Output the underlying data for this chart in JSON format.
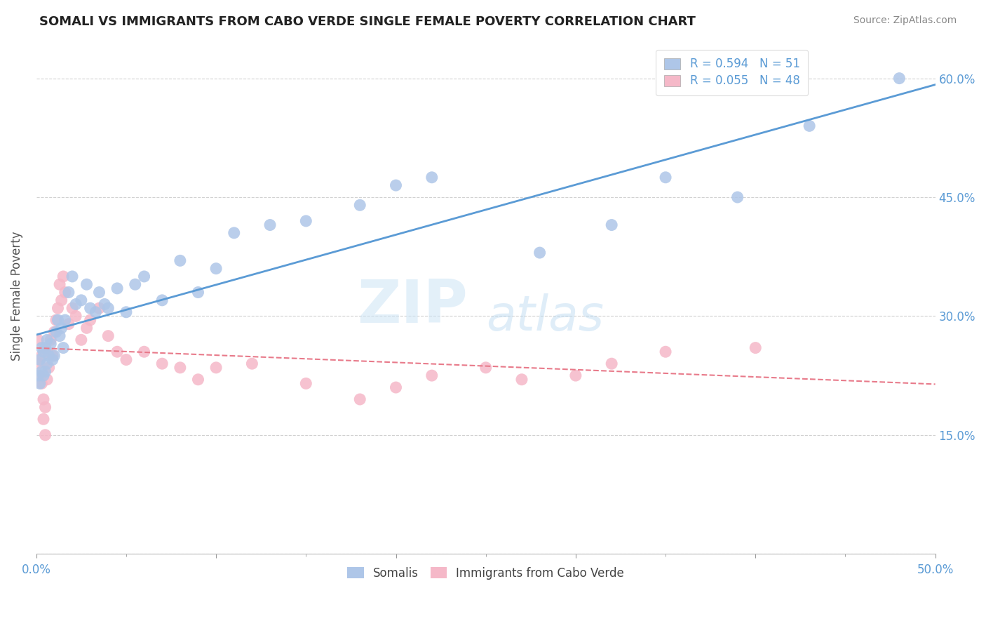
{
  "title": "SOMALI VS IMMIGRANTS FROM CABO VERDE SINGLE FEMALE POVERTY CORRELATION CHART",
  "source": "Source: ZipAtlas.com",
  "ylabel_label": "Single Female Poverty",
  "blue_color": "#aec6e8",
  "pink_color": "#f5b8c8",
  "blue_line_color": "#5b9bd5",
  "pink_line_color": "#e87a8a",
  "somali_x": [
    0.001,
    0.002,
    0.002,
    0.003,
    0.003,
    0.004,
    0.004,
    0.005,
    0.005,
    0.006,
    0.006,
    0.007,
    0.008,
    0.009,
    0.01,
    0.011,
    0.012,
    0.013,
    0.014,
    0.015,
    0.016,
    0.018,
    0.02,
    0.022,
    0.025,
    0.028,
    0.03,
    0.033,
    0.035,
    0.038,
    0.04,
    0.045,
    0.05,
    0.055,
    0.06,
    0.07,
    0.08,
    0.09,
    0.1,
    0.11,
    0.13,
    0.15,
    0.18,
    0.2,
    0.22,
    0.28,
    0.32,
    0.35,
    0.39,
    0.43,
    0.48
  ],
  "somali_y": [
    0.225,
    0.215,
    0.245,
    0.23,
    0.26,
    0.225,
    0.255,
    0.23,
    0.26,
    0.24,
    0.27,
    0.25,
    0.265,
    0.245,
    0.25,
    0.28,
    0.295,
    0.275,
    0.285,
    0.26,
    0.295,
    0.33,
    0.35,
    0.315,
    0.32,
    0.34,
    0.31,
    0.305,
    0.33,
    0.315,
    0.31,
    0.335,
    0.305,
    0.34,
    0.35,
    0.32,
    0.37,
    0.33,
    0.36,
    0.405,
    0.415,
    0.42,
    0.44,
    0.465,
    0.475,
    0.38,
    0.415,
    0.475,
    0.45,
    0.54,
    0.6
  ],
  "cabo_x": [
    0.001,
    0.001,
    0.002,
    0.002,
    0.003,
    0.003,
    0.004,
    0.004,
    0.005,
    0.005,
    0.006,
    0.006,
    0.007,
    0.008,
    0.009,
    0.01,
    0.011,
    0.012,
    0.013,
    0.014,
    0.015,
    0.016,
    0.018,
    0.02,
    0.022,
    0.025,
    0.028,
    0.03,
    0.035,
    0.04,
    0.045,
    0.05,
    0.06,
    0.07,
    0.08,
    0.09,
    0.1,
    0.12,
    0.15,
    0.18,
    0.2,
    0.22,
    0.25,
    0.27,
    0.3,
    0.32,
    0.35,
    0.4
  ],
  "cabo_y": [
    0.24,
    0.27,
    0.245,
    0.225,
    0.25,
    0.215,
    0.195,
    0.17,
    0.15,
    0.185,
    0.22,
    0.255,
    0.235,
    0.27,
    0.25,
    0.28,
    0.295,
    0.31,
    0.34,
    0.32,
    0.35,
    0.33,
    0.29,
    0.31,
    0.3,
    0.27,
    0.285,
    0.295,
    0.31,
    0.275,
    0.255,
    0.245,
    0.255,
    0.24,
    0.235,
    0.22,
    0.235,
    0.24,
    0.215,
    0.195,
    0.21,
    0.225,
    0.235,
    0.22,
    0.225,
    0.24,
    0.255,
    0.26
  ],
  "xlim": [
    0.0,
    0.5
  ],
  "ylim": [
    0.0,
    0.65
  ],
  "watermark_zip": "ZIP",
  "watermark_atlas": "atlas",
  "background_color": "#ffffff",
  "grid_color": "#cccccc"
}
